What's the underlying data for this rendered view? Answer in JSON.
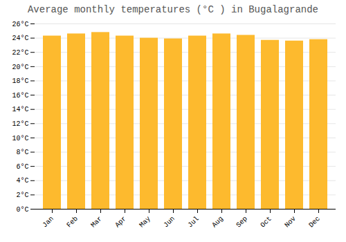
{
  "chart_data": {
    "type": "bar",
    "title": "Average monthly temperatures (°C ) in Bugalagrande",
    "categories": [
      "Jan",
      "Feb",
      "Mar",
      "Apr",
      "May",
      "Jun",
      "Jul",
      "Aug",
      "Sep",
      "Oct",
      "Nov",
      "Dec"
    ],
    "values": [
      24.3,
      24.6,
      24.8,
      24.3,
      24.0,
      23.9,
      24.3,
      24.6,
      24.4,
      23.7,
      23.6,
      23.8
    ],
    "color": "#FDBA2E",
    "ylim": [
      0,
      26
    ],
    "yticks": [
      {
        "value": 0,
        "label": "0°C"
      },
      {
        "value": 2,
        "label": "2°C"
      },
      {
        "value": 4,
        "label": "4°C"
      },
      {
        "value": 6,
        "label": "6°C"
      },
      {
        "value": 8,
        "label": "8°C"
      },
      {
        "value": 10,
        "label": "10°C"
      },
      {
        "value": 12,
        "label": "12°C"
      },
      {
        "value": 14,
        "label": "14°C"
      },
      {
        "value": 16,
        "label": "16°C"
      },
      {
        "value": 18,
        "label": "18°C"
      },
      {
        "value": 20,
        "label": "20°C"
      },
      {
        "value": 22,
        "label": "22°C"
      },
      {
        "value": 24,
        "label": "24°C"
      },
      {
        "value": 26,
        "label": "26°C"
      }
    ],
    "grid": true
  }
}
